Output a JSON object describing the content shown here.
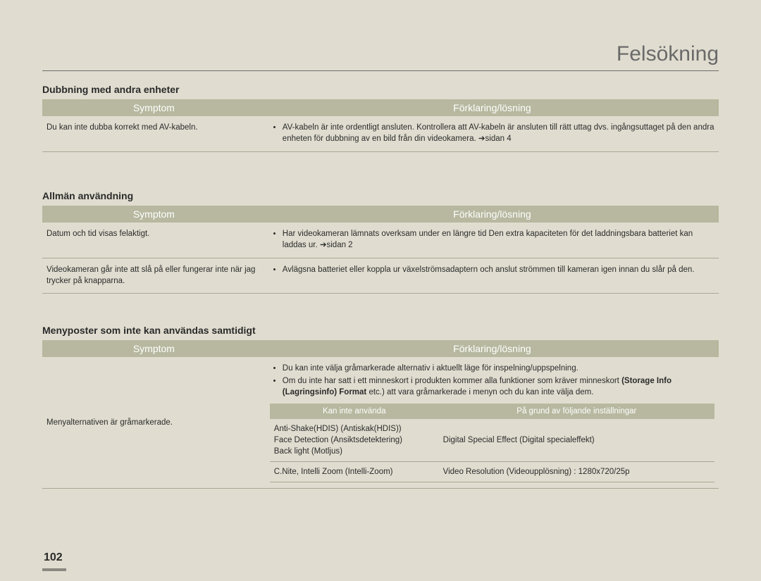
{
  "page_title": "Felsökning",
  "page_number": "102",
  "sections": [
    {
      "heading": "Dubbning med andra enheter",
      "headers": {
        "symptom": "Symptom",
        "explain": "Förklaring/lösning"
      },
      "rows": [
        {
          "symptom": "Du kan inte dubba korrekt med AV-kabeln.",
          "explain_items": [
            "AV-kabeln är inte ordentligt ansluten. Kontrollera att AV-kabeln är ansluten till rätt uttag dvs. ingångsuttaget på den andra enheten för dubbning av en bild från din videokamera. ➔sidan 4"
          ]
        }
      ]
    },
    {
      "heading": "Allmän användning",
      "headers": {
        "symptom": "Symptom",
        "explain": "Förklaring/lösning"
      },
      "rows": [
        {
          "symptom": "Datum och tid visas felaktigt.",
          "explain_items": [
            "Har videokameran lämnats overksam under en längre tid Den extra kapaciteten för det laddningsbara batteriet kan laddas ur. ➔sidan 2"
          ]
        },
        {
          "symptom": "Videokameran går inte att slå på eller fungerar inte när jag trycker på knapparna.",
          "explain_items": [
            "Avlägsna batteriet eller koppla ur växelströmsadaptern och anslut strömmen till kameran igen innan du slår på den."
          ]
        }
      ]
    },
    {
      "heading": "Menyposter som inte kan användas samtidigt",
      "headers": {
        "symptom": "Symptom",
        "explain": "Förklaring/lösning"
      },
      "rows": [
        {
          "symptom": "Menyalternativen är gråmarkerade.",
          "explain_intro": {
            "b1": "Du kan inte välja gråmarkerade alternativ i aktuellt läge för inspelning/uppspelning.",
            "b2a": "Om du inte har satt i ett minneskort i produkten kommer alla funktioner som kräver minneskort ",
            "b2b": "(Storage Info (Lagringsinfo) Format",
            "b2c": " etc.) att vara gråmarkerade i menyn och du kan inte välja dem."
          },
          "subtable": {
            "headers": {
              "cannot": "Kan inte använda",
              "because": "På grund av följande inställningar"
            },
            "rows": [
              {
                "cannot": "Anti-Shake(HDIS) (Antiskak(HDIS))\nFace Detection (Ansiktsdetektering)\nBack light (Motljus)",
                "because": "Digital Special Effect (Digital specialeffekt)"
              },
              {
                "cannot": "C.Nite, Intelli Zoom (Intelli-Zoom)",
                "because": "Video Resolution (Videoupplösning) : 1280x720/25p"
              }
            ]
          }
        }
      ]
    }
  ]
}
